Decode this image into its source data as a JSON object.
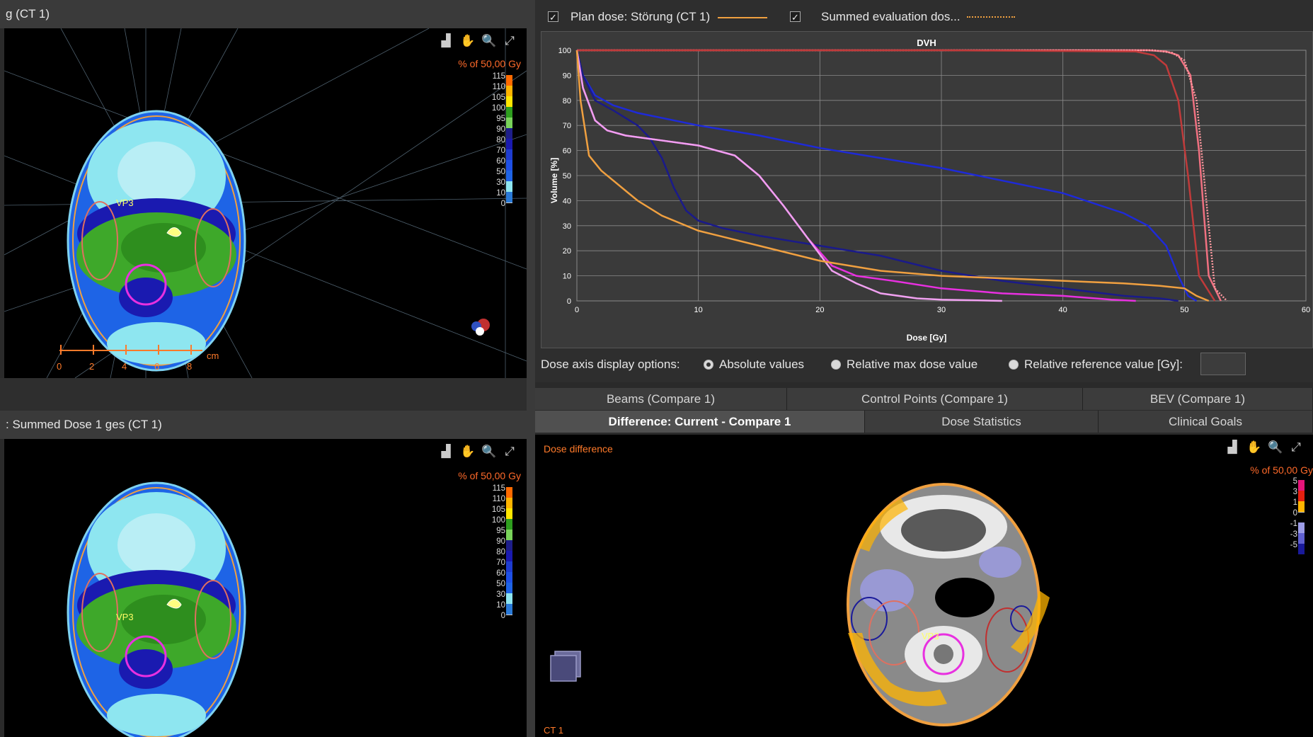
{
  "panels": {
    "top_left_title": "g (CT 1)",
    "bottom_left_title": ": Summed Dose 1 ges (CT 1)"
  },
  "dvh_header": {
    "series1_label": "Plan dose: Störung (CT 1)",
    "series1_checked": true,
    "series2_label": "Summed evaluation dos...",
    "series2_checked": true
  },
  "view_icons": [
    "histogram-icon",
    "pan-hand-icon",
    "zoom-icon",
    "fit-view-icon"
  ],
  "dose_legend": {
    "title": "% of 50,00 Gy",
    "levels": [
      "115",
      "110",
      "105",
      "100",
      "95",
      "90",
      "80",
      "70",
      "60",
      "50",
      "30",
      "10",
      "0"
    ],
    "colors": [
      "#ff6a00",
      "#ffb400",
      "#ffe600",
      "#2e9e1e",
      "#79d35a",
      "#1e1e8a",
      "#1a1ab0",
      "#1e3cd0",
      "#1e50e6",
      "#1e64e6",
      "#8ee6f0",
      "#2a7ad8",
      "#000000"
    ]
  },
  "diff_legend": {
    "title": "% of 50,00 Gy",
    "levels": [
      "5",
      "3",
      "1",
      "0",
      "-1",
      "-3",
      "-5"
    ],
    "colors": [
      "#e6147a",
      "#e62010",
      "#ffb400",
      "#000000",
      "#9c9ce6",
      "#6060d0",
      "#1a1a9a"
    ]
  },
  "roi_label": "VP3",
  "ruler": {
    "labels": [
      "0",
      "2",
      "4",
      "6",
      "8"
    ],
    "unit": "cm"
  },
  "dose_axis": {
    "label": "Dose axis display options:",
    "options": [
      {
        "label": "Absolute values",
        "selected": true
      },
      {
        "label": "Relative max dose value",
        "selected": false
      },
      {
        "label": "Relative reference value [Gy]:",
        "selected": false
      }
    ],
    "reference_value": ""
  },
  "tabs_row1": [
    "Beams (Compare 1)",
    "Control Points (Compare 1)",
    "BEV (Compare 1)"
  ],
  "tabs_row2": [
    "Difference: Current - Compare 1",
    "Dose Statistics",
    "Clinical Goals"
  ],
  "diff_view": {
    "title": "Dose difference",
    "ct_label": "CT 1"
  },
  "chart_data": {
    "type": "line",
    "title": "DVH",
    "xlabel": "Dose [Gy]",
    "ylabel": "Volume [%]",
    "xlim": [
      0,
      60
    ],
    "ylim": [
      0,
      100
    ],
    "xticks": [
      0,
      10,
      20,
      30,
      40,
      50,
      60
    ],
    "yticks": [
      0,
      10,
      20,
      30,
      40,
      50,
      60,
      70,
      80,
      90,
      100
    ],
    "grid": true,
    "series": [
      {
        "color": "#f07080",
        "dash": "solid",
        "x": [
          0,
          30,
          47,
          48.5,
          49.5,
          50.5,
          51.2,
          52,
          53
        ],
        "y": [
          100,
          100,
          100,
          99.5,
          98,
          90,
          60,
          10,
          0
        ]
      },
      {
        "color": "#ff9aa0",
        "dash": "dotted",
        "x": [
          0,
          30,
          47.5,
          49,
          50,
          51,
          51.8,
          52.5,
          53.5
        ],
        "y": [
          100,
          100,
          100,
          99,
          96,
          80,
          40,
          5,
          0
        ]
      },
      {
        "color": "#c03a3a",
        "dash": "solid",
        "x": [
          0,
          30,
          46,
          47.5,
          48.5,
          49.5,
          50.3,
          51.2,
          52.5
        ],
        "y": [
          100,
          100,
          99.5,
          98,
          94,
          80,
          50,
          10,
          0
        ]
      },
      {
        "color": "#1e2ad8",
        "dash": "solid",
        "x": [
          0,
          0.5,
          1.5,
          3,
          5,
          10,
          15,
          20,
          25,
          30,
          35,
          40,
          45,
          47,
          48.5,
          49.5,
          50.3,
          51
        ],
        "y": [
          100,
          90,
          82,
          78,
          75,
          70,
          66,
          61,
          57,
          53,
          48,
          43,
          35,
          30,
          22,
          10,
          2,
          0
        ]
      },
      {
        "color": "#1a1a8a",
        "dash": "solid",
        "x": [
          0,
          0.5,
          1.5,
          3,
          5,
          6,
          7,
          8,
          9,
          10,
          12,
          15,
          20,
          25,
          30,
          35,
          40,
          45,
          48,
          49.5
        ],
        "y": [
          100,
          90,
          80,
          76,
          70,
          65,
          57,
          45,
          36,
          32,
          29,
          26,
          22,
          18,
          12,
          8,
          5,
          2,
          1,
          0
        ]
      },
      {
        "color": "#e830e0",
        "dash": "solid",
        "x": [
          0,
          0.5,
          1.5,
          2.5,
          4,
          7,
          10,
          13,
          15,
          17,
          19,
          21,
          23,
          26,
          30,
          35,
          40,
          44,
          46
        ],
        "y": [
          100,
          85,
          72,
          68,
          66,
          64,
          62,
          58,
          50,
          38,
          25,
          14,
          10,
          8,
          5,
          3,
          2,
          0.5,
          0
        ]
      },
      {
        "color": "#f0a0f0",
        "dash": "solid",
        "x": [
          0,
          0.5,
          1.5,
          2.5,
          4,
          7,
          10,
          13,
          15,
          17,
          19,
          21,
          23,
          25,
          28,
          30,
          33,
          35
        ],
        "y": [
          100,
          85,
          72,
          68,
          66,
          64,
          62,
          58,
          50,
          38,
          25,
          12,
          7,
          3,
          1,
          0.5,
          0.2,
          0
        ]
      },
      {
        "color": "#f0a040",
        "dash": "solid",
        "x": [
          0,
          0.3,
          1,
          2,
          3,
          4,
          5,
          7,
          10,
          15,
          20,
          25,
          30,
          35,
          40,
          45,
          48,
          50,
          51,
          52
        ],
        "y": [
          100,
          80,
          58,
          52,
          48,
          44,
          40,
          34,
          28,
          22,
          16,
          12,
          10,
          9,
          8,
          7,
          6,
          5,
          2,
          0
        ]
      }
    ]
  }
}
